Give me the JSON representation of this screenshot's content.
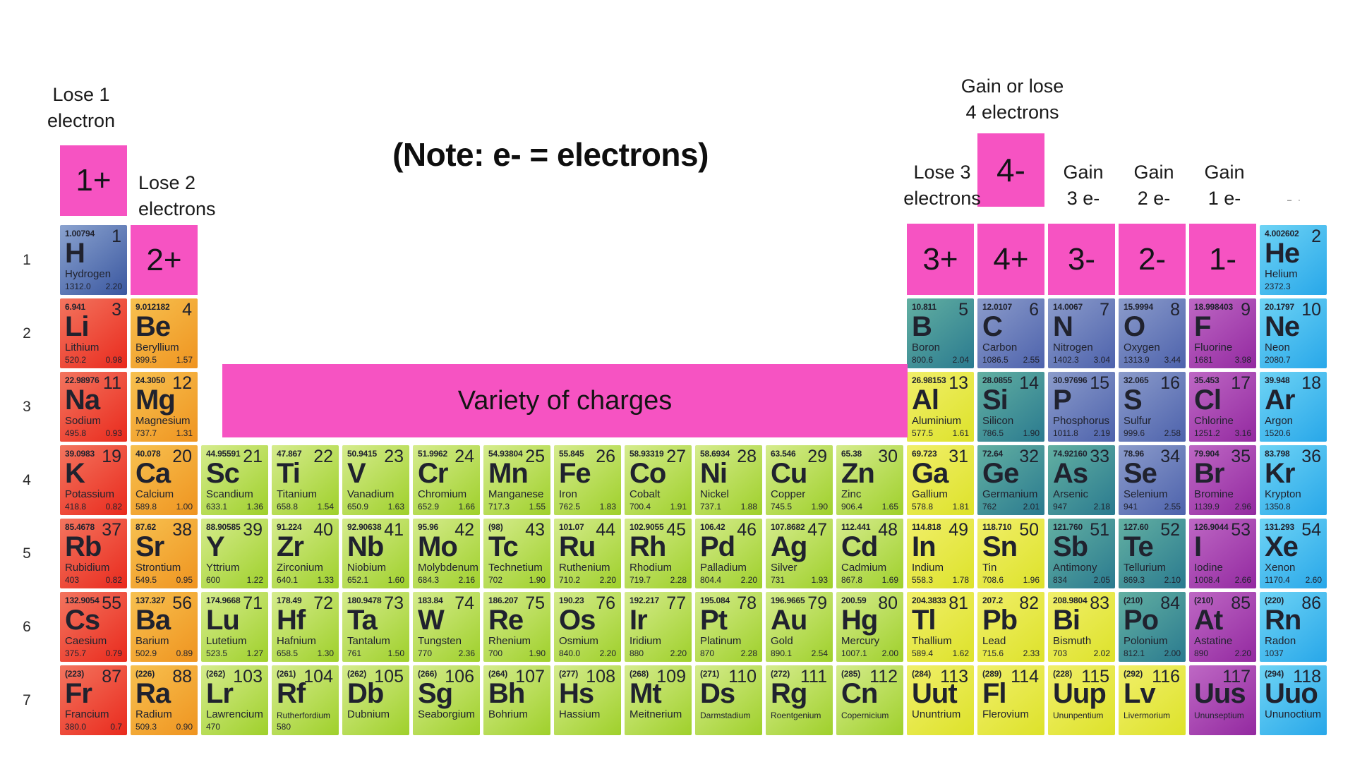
{
  "title_note": "(Note: e- = electrons)",
  "variety_label": "Variety of charges",
  "labels": {
    "lose1": [
      "Lose 1",
      "electron"
    ],
    "lose2": [
      "Lose 2",
      "electrons"
    ],
    "gain_or_lose4": [
      "Gain or lose",
      "4 electrons"
    ],
    "lose3": [
      "Lose 3",
      "electrons"
    ],
    "gain3": [
      "Gain",
      "3 e-"
    ],
    "gain2": [
      "Gain",
      "2 e-"
    ],
    "gain1": [
      "Gain",
      "1 e-"
    ]
  },
  "charge_boxes": {
    "plus1": "1+",
    "plus2": "2+",
    "plus3": "3+",
    "plus4": "4+",
    "minus4": "4-",
    "minus3": "3-",
    "minus2": "2-",
    "minus1": "1-"
  },
  "misc": {
    "fragment": "– ·"
  },
  "row_numbers": [
    "1",
    "2",
    "3",
    "4",
    "5",
    "6",
    "7"
  ],
  "colors": {
    "pink": "#F653C2",
    "categories": {
      "hydrogen": [
        "#8BA3CF",
        "#3A57A0"
      ],
      "alkali": [
        "#F3755F",
        "#E92A1D"
      ],
      "alkaline": [
        "#F7C150",
        "#EF9420"
      ],
      "transition": [
        "#D6EC8E",
        "#9FD02B"
      ],
      "post": [
        "#F1EF6B",
        "#DDE22A"
      ],
      "metalloid": [
        "#63B0A2",
        "#2A7A8F"
      ],
      "nonmetal": [
        "#8C9CCB",
        "#4D62AC"
      ],
      "halogen": [
        "#BE68C4",
        "#9329A0"
      ],
      "noble": [
        "#6FD4F5",
        "#28A7E9"
      ]
    }
  },
  "elements": [
    {
      "n": 1,
      "s": "H",
      "name": "Hydrogen",
      "m": "1.00794",
      "ie": "1312.0",
      "en": "2.20",
      "row": 1,
      "col": 1,
      "cat": "hydrogen"
    },
    {
      "n": 2,
      "s": "He",
      "name": "Helium",
      "m": "4.002602",
      "ie": "2372.3",
      "en": "",
      "row": 1,
      "col": 18,
      "cat": "noble"
    },
    {
      "n": 3,
      "s": "Li",
      "name": "Lithium",
      "m": "6.941",
      "ie": "520.2",
      "en": "0.98",
      "row": 2,
      "col": 1,
      "cat": "alkali"
    },
    {
      "n": 4,
      "s": "Be",
      "name": "Beryllium",
      "m": "9.012182",
      "ie": "899.5",
      "en": "1.57",
      "row": 2,
      "col": 2,
      "cat": "alkaline"
    },
    {
      "n": 5,
      "s": "B",
      "name": "Boron",
      "m": "10.811",
      "ie": "800.6",
      "en": "2.04",
      "row": 2,
      "col": 13,
      "cat": "metalloid"
    },
    {
      "n": 6,
      "s": "C",
      "name": "Carbon",
      "m": "12.0107",
      "ie": "1086.5",
      "en": "2.55",
      "row": 2,
      "col": 14,
      "cat": "nonmetal"
    },
    {
      "n": 7,
      "s": "N",
      "name": "Nitrogen",
      "m": "14.0067",
      "ie": "1402.3",
      "en": "3.04",
      "row": 2,
      "col": 15,
      "cat": "nonmetal"
    },
    {
      "n": 8,
      "s": "O",
      "name": "Oxygen",
      "m": "15.9994",
      "ie": "1313.9",
      "en": "3.44",
      "row": 2,
      "col": 16,
      "cat": "nonmetal"
    },
    {
      "n": 9,
      "s": "F",
      "name": "Fluorine",
      "m": "18.998403",
      "ie": "1681",
      "en": "3.98",
      "row": 2,
      "col": 17,
      "cat": "halogen"
    },
    {
      "n": 10,
      "s": "Ne",
      "name": "Neon",
      "m": "20.1797",
      "ie": "2080.7",
      "en": "",
      "row": 2,
      "col": 18,
      "cat": "noble"
    },
    {
      "n": 11,
      "s": "Na",
      "name": "Sodium",
      "m": "22.98976",
      "ie": "495.8",
      "en": "0.93",
      "row": 3,
      "col": 1,
      "cat": "alkali"
    },
    {
      "n": 12,
      "s": "Mg",
      "name": "Magnesium",
      "m": "24.3050",
      "ie": "737.7",
      "en": "1.31",
      "row": 3,
      "col": 2,
      "cat": "alkaline"
    },
    {
      "n": 13,
      "s": "Al",
      "name": "Aluminium",
      "m": "26.98153",
      "ie": "577.5",
      "en": "1.61",
      "row": 3,
      "col": 13,
      "cat": "post"
    },
    {
      "n": 14,
      "s": "Si",
      "name": "Silicon",
      "m": "28.0855",
      "ie": "786.5",
      "en": "1.90",
      "row": 3,
      "col": 14,
      "cat": "metalloid"
    },
    {
      "n": 15,
      "s": "P",
      "name": "Phosphorus",
      "m": "30.97696",
      "ie": "1011.8",
      "en": "2.19",
      "row": 3,
      "col": 15,
      "cat": "nonmetal"
    },
    {
      "n": 16,
      "s": "S",
      "name": "Sulfur",
      "m": "32.065",
      "ie": "999.6",
      "en": "2.58",
      "row": 3,
      "col": 16,
      "cat": "nonmetal"
    },
    {
      "n": 17,
      "s": "Cl",
      "name": "Chlorine",
      "m": "35.453",
      "ie": "1251.2",
      "en": "3.16",
      "row": 3,
      "col": 17,
      "cat": "halogen"
    },
    {
      "n": 18,
      "s": "Ar",
      "name": "Argon",
      "m": "39.948",
      "ie": "1520.6",
      "en": "",
      "row": 3,
      "col": 18,
      "cat": "noble"
    },
    {
      "n": 19,
      "s": "K",
      "name": "Potassium",
      "m": "39.0983",
      "ie": "418.8",
      "en": "0.82",
      "row": 4,
      "col": 1,
      "cat": "alkali"
    },
    {
      "n": 20,
      "s": "Ca",
      "name": "Calcium",
      "m": "40.078",
      "ie": "589.8",
      "en": "1.00",
      "row": 4,
      "col": 2,
      "cat": "alkaline"
    },
    {
      "n": 21,
      "s": "Sc",
      "name": "Scandium",
      "m": "44.95591",
      "ie": "633.1",
      "en": "1.36",
      "row": 4,
      "col": 3,
      "cat": "transition"
    },
    {
      "n": 22,
      "s": "Ti",
      "name": "Titanium",
      "m": "47.867",
      "ie": "658.8",
      "en": "1.54",
      "row": 4,
      "col": 4,
      "cat": "transition"
    },
    {
      "n": 23,
      "s": "V",
      "name": "Vanadium",
      "m": "50.9415",
      "ie": "650.9",
      "en": "1.63",
      "row": 4,
      "col": 5,
      "cat": "transition"
    },
    {
      "n": 24,
      "s": "Cr",
      "name": "Chromium",
      "m": "51.9962",
      "ie": "652.9",
      "en": "1.66",
      "row": 4,
      "col": 6,
      "cat": "transition"
    },
    {
      "n": 25,
      "s": "Mn",
      "name": "Manganese",
      "m": "54.93804",
      "ie": "717.3",
      "en": "1.55",
      "row": 4,
      "col": 7,
      "cat": "transition"
    },
    {
      "n": 26,
      "s": "Fe",
      "name": "Iron",
      "m": "55.845",
      "ie": "762.5",
      "en": "1.83",
      "row": 4,
      "col": 8,
      "cat": "transition"
    },
    {
      "n": 27,
      "s": "Co",
      "name": "Cobalt",
      "m": "58.93319",
      "ie": "700.4",
      "en": "1.91",
      "row": 4,
      "col": 9,
      "cat": "transition"
    },
    {
      "n": 28,
      "s": "Ni",
      "name": "Nickel",
      "m": "58.6934",
      "ie": "737.1",
      "en": "1.88",
      "row": 4,
      "col": 10,
      "cat": "transition"
    },
    {
      "n": 29,
      "s": "Cu",
      "name": "Copper",
      "m": "63.546",
      "ie": "745.5",
      "en": "1.90",
      "row": 4,
      "col": 11,
      "cat": "transition"
    },
    {
      "n": 30,
      "s": "Zn",
      "name": "Zinc",
      "m": "65.38",
      "ie": "906.4",
      "en": "1.65",
      "row": 4,
      "col": 12,
      "cat": "transition"
    },
    {
      "n": 31,
      "s": "Ga",
      "name": "Gallium",
      "m": "69.723",
      "ie": "578.8",
      "en": "1.81",
      "row": 4,
      "col": 13,
      "cat": "post"
    },
    {
      "n": 32,
      "s": "Ge",
      "name": "Germanium",
      "m": "72.64",
      "ie": "762",
      "en": "2.01",
      "row": 4,
      "col": 14,
      "cat": "metalloid"
    },
    {
      "n": 33,
      "s": "As",
      "name": "Arsenic",
      "m": "74.92160",
      "ie": "947",
      "en": "2.18",
      "row": 4,
      "col": 15,
      "cat": "metalloid"
    },
    {
      "n": 34,
      "s": "Se",
      "name": "Selenium",
      "m": "78.96",
      "ie": "941",
      "en": "2.55",
      "row": 4,
      "col": 16,
      "cat": "nonmetal"
    },
    {
      "n": 35,
      "s": "Br",
      "name": "Bromine",
      "m": "79.904",
      "ie": "1139.9",
      "en": "2.96",
      "row": 4,
      "col": 17,
      "cat": "halogen"
    },
    {
      "n": 36,
      "s": "Kr",
      "name": "Krypton",
      "m": "83.798",
      "ie": "1350.8",
      "en": "",
      "row": 4,
      "col": 18,
      "cat": "noble"
    },
    {
      "n": 37,
      "s": "Rb",
      "name": "Rubidium",
      "m": "85.4678",
      "ie": "403",
      "en": "0.82",
      "row": 5,
      "col": 1,
      "cat": "alkali"
    },
    {
      "n": 38,
      "s": "Sr",
      "name": "Strontium",
      "m": "87.62",
      "ie": "549.5",
      "en": "0.95",
      "row": 5,
      "col": 2,
      "cat": "alkaline"
    },
    {
      "n": 39,
      "s": "Y",
      "name": "Yttrium",
      "m": "88.90585",
      "ie": "600",
      "en": "1.22",
      "row": 5,
      "col": 3,
      "cat": "transition"
    },
    {
      "n": 40,
      "s": "Zr",
      "name": "Zirconium",
      "m": "91.224",
      "ie": "640.1",
      "en": "1.33",
      "row": 5,
      "col": 4,
      "cat": "transition"
    },
    {
      "n": 41,
      "s": "Nb",
      "name": "Niobium",
      "m": "92.90638",
      "ie": "652.1",
      "en": "1.60",
      "row": 5,
      "col": 5,
      "cat": "transition"
    },
    {
      "n": 42,
      "s": "Mo",
      "name": "Molybdenum",
      "m": "95.96",
      "ie": "684.3",
      "en": "2.16",
      "row": 5,
      "col": 6,
      "cat": "transition"
    },
    {
      "n": 43,
      "s": "Tc",
      "name": "Technetium",
      "m": "(98)",
      "ie": "702",
      "en": "1.90",
      "row": 5,
      "col": 7,
      "cat": "transition"
    },
    {
      "n": 44,
      "s": "Ru",
      "name": "Ruthenium",
      "m": "101.07",
      "ie": "710.2",
      "en": "2.20",
      "row": 5,
      "col": 8,
      "cat": "transition"
    },
    {
      "n": 45,
      "s": "Rh",
      "name": "Rhodium",
      "m": "102.9055",
      "ie": "719.7",
      "en": "2.28",
      "row": 5,
      "col": 9,
      "cat": "transition"
    },
    {
      "n": 46,
      "s": "Pd",
      "name": "Palladium",
      "m": "106.42",
      "ie": "804.4",
      "en": "2.20",
      "row": 5,
      "col": 10,
      "cat": "transition"
    },
    {
      "n": 47,
      "s": "Ag",
      "name": "Silver",
      "m": "107.8682",
      "ie": "731",
      "en": "1.93",
      "row": 5,
      "col": 11,
      "cat": "transition"
    },
    {
      "n": 48,
      "s": "Cd",
      "name": "Cadmium",
      "m": "112.441",
      "ie": "867.8",
      "en": "1.69",
      "row": 5,
      "col": 12,
      "cat": "transition"
    },
    {
      "n": 49,
      "s": "In",
      "name": "Indium",
      "m": "114.818",
      "ie": "558.3",
      "en": "1.78",
      "row": 5,
      "col": 13,
      "cat": "post"
    },
    {
      "n": 50,
      "s": "Sn",
      "name": "Tin",
      "m": "118.710",
      "ie": "708.6",
      "en": "1.96",
      "row": 5,
      "col": 14,
      "cat": "post"
    },
    {
      "n": 51,
      "s": "Sb",
      "name": "Antimony",
      "m": "121.760",
      "ie": "834",
      "en": "2.05",
      "row": 5,
      "col": 15,
      "cat": "metalloid"
    },
    {
      "n": 52,
      "s": "Te",
      "name": "Tellurium",
      "m": "127.60",
      "ie": "869.3",
      "en": "2.10",
      "row": 5,
      "col": 16,
      "cat": "metalloid"
    },
    {
      "n": 53,
      "s": "I",
      "name": "Iodine",
      "m": "126.9044",
      "ie": "1008.4",
      "en": "2.66",
      "row": 5,
      "col": 17,
      "cat": "halogen"
    },
    {
      "n": 54,
      "s": "Xe",
      "name": "Xenon",
      "m": "131.293",
      "ie": "1170.4",
      "en": "2.60",
      "row": 5,
      "col": 18,
      "cat": "noble"
    },
    {
      "n": 55,
      "s": "Cs",
      "name": "Caesium",
      "m": "132.9054",
      "ie": "375.7",
      "en": "0.79",
      "row": 6,
      "col": 1,
      "cat": "alkali"
    },
    {
      "n": 56,
      "s": "Ba",
      "name": "Barium",
      "m": "137.327",
      "ie": "502.9",
      "en": "0.89",
      "row": 6,
      "col": 2,
      "cat": "alkaline"
    },
    {
      "n": 71,
      "s": "Lu",
      "name": "Lutetium",
      "m": "174.9668",
      "ie": "523.5",
      "en": "1.27",
      "row": 6,
      "col": 3,
      "cat": "transition"
    },
    {
      "n": 72,
      "s": "Hf",
      "name": "Hafnium",
      "m": "178.49",
      "ie": "658.5",
      "en": "1.30",
      "row": 6,
      "col": 4,
      "cat": "transition"
    },
    {
      "n": 73,
      "s": "Ta",
      "name": "Tantalum",
      "m": "180.9478",
      "ie": "761",
      "en": "1.50",
      "row": 6,
      "col": 5,
      "cat": "transition"
    },
    {
      "n": 74,
      "s": "W",
      "name": "Tungsten",
      "m": "183.84",
      "ie": "770",
      "en": "2.36",
      "row": 6,
      "col": 6,
      "cat": "transition"
    },
    {
      "n": 75,
      "s": "Re",
      "name": "Rhenium",
      "m": "186.207",
      "ie": "700",
      "en": "1.90",
      "row": 6,
      "col": 7,
      "cat": "transition"
    },
    {
      "n": 76,
      "s": "Os",
      "name": "Osmium",
      "m": "190.23",
      "ie": "840.0",
      "en": "2.20",
      "row": 6,
      "col": 8,
      "cat": "transition"
    },
    {
      "n": 77,
      "s": "Ir",
      "name": "Iridium",
      "m": "192.217",
      "ie": "880",
      "en": "2.20",
      "row": 6,
      "col": 9,
      "cat": "transition"
    },
    {
      "n": 78,
      "s": "Pt",
      "name": "Platinum",
      "m": "195.084",
      "ie": "870",
      "en": "2.28",
      "row": 6,
      "col": 10,
      "cat": "transition"
    },
    {
      "n": 79,
      "s": "Au",
      "name": "Gold",
      "m": "196.9665",
      "ie": "890.1",
      "en": "2.54",
      "row": 6,
      "col": 11,
      "cat": "transition"
    },
    {
      "n": 80,
      "s": "Hg",
      "name": "Mercury",
      "m": "200.59",
      "ie": "1007.1",
      "en": "2.00",
      "row": 6,
      "col": 12,
      "cat": "transition"
    },
    {
      "n": 81,
      "s": "Tl",
      "name": "Thallium",
      "m": "204.3833",
      "ie": "589.4",
      "en": "1.62",
      "row": 6,
      "col": 13,
      "cat": "post"
    },
    {
      "n": 82,
      "s": "Pb",
      "name": "Lead",
      "m": "207.2",
      "ie": "715.6",
      "en": "2.33",
      "row": 6,
      "col": 14,
      "cat": "post"
    },
    {
      "n": 83,
      "s": "Bi",
      "name": "Bismuth",
      "m": "208.9804",
      "ie": "703",
      "en": "2.02",
      "row": 6,
      "col": 15,
      "cat": "post"
    },
    {
      "n": 84,
      "s": "Po",
      "name": "Polonium",
      "m": "(210)",
      "ie": "812.1",
      "en": "2.00",
      "row": 6,
      "col": 16,
      "cat": "metalloid"
    },
    {
      "n": 85,
      "s": "At",
      "name": "Astatine",
      "m": "(210)",
      "ie": "890",
      "en": "2.20",
      "row": 6,
      "col": 17,
      "cat": "halogen"
    },
    {
      "n": 86,
      "s": "Rn",
      "name": "Radon",
      "m": "(220)",
      "ie": "1037",
      "en": "",
      "row": 6,
      "col": 18,
      "cat": "noble"
    },
    {
      "n": 87,
      "s": "Fr",
      "name": "Francium",
      "m": "(223)",
      "ie": "380.0",
      "en": "0.7",
      "row": 7,
      "col": 1,
      "cat": "alkali"
    },
    {
      "n": 88,
      "s": "Ra",
      "name": "Radium",
      "m": "(226)",
      "ie": "509.3",
      "en": "0.90",
      "row": 7,
      "col": 2,
      "cat": "alkaline"
    },
    {
      "n": 103,
      "s": "Lr",
      "name": "Lawrencium",
      "m": "(262)",
      "ie": "470",
      "en": "",
      "row": 7,
      "col": 3,
      "cat": "transition"
    },
    {
      "n": 104,
      "s": "Rf",
      "name": "Rutherfordium",
      "m": "(261)",
      "ie": "580",
      "en": "",
      "row": 7,
      "col": 4,
      "cat": "transition"
    },
    {
      "n": 105,
      "s": "Db",
      "name": "Dubnium",
      "m": "(262)",
      "ie": "",
      "en": "",
      "row": 7,
      "col": 5,
      "cat": "transition"
    },
    {
      "n": 106,
      "s": "Sg",
      "name": "Seaborgium",
      "m": "(266)",
      "ie": "",
      "en": "",
      "row": 7,
      "col": 6,
      "cat": "transition"
    },
    {
      "n": 107,
      "s": "Bh",
      "name": "Bohrium",
      "m": "(264)",
      "ie": "",
      "en": "",
      "row": 7,
      "col": 7,
      "cat": "transition"
    },
    {
      "n": 108,
      "s": "Hs",
      "name": "Hassium",
      "m": "(277)",
      "ie": "",
      "en": "",
      "row": 7,
      "col": 8,
      "cat": "transition"
    },
    {
      "n": 109,
      "s": "Mt",
      "name": "Meitnerium",
      "m": "(268)",
      "ie": "",
      "en": "",
      "row": 7,
      "col": 9,
      "cat": "transition"
    },
    {
      "n": 110,
      "s": "Ds",
      "name": "Darmstadium",
      "m": "(271)",
      "ie": "",
      "en": "",
      "row": 7,
      "col": 10,
      "cat": "transition"
    },
    {
      "n": 111,
      "s": "Rg",
      "name": "Roentgenium",
      "m": "(272)",
      "ie": "",
      "en": "",
      "row": 7,
      "col": 11,
      "cat": "transition"
    },
    {
      "n": 112,
      "s": "Cn",
      "name": "Copernicium",
      "m": "(285)",
      "ie": "",
      "en": "",
      "row": 7,
      "col": 12,
      "cat": "transition"
    },
    {
      "n": 113,
      "s": "Uut",
      "name": "Ununtrium",
      "m": "(284)",
      "ie": "",
      "en": "",
      "row": 7,
      "col": 13,
      "cat": "post"
    },
    {
      "n": 114,
      "s": "Fl",
      "name": "Flerovium",
      "m": "(289)",
      "ie": "",
      "en": "",
      "row": 7,
      "col": 14,
      "cat": "post"
    },
    {
      "n": 115,
      "s": "Uup",
      "name": "Ununpentium",
      "m": "(228)",
      "ie": "",
      "en": "",
      "row": 7,
      "col": 15,
      "cat": "post"
    },
    {
      "n": 116,
      "s": "Lv",
      "name": "Livermorium",
      "m": "(292)",
      "ie": "",
      "en": "",
      "row": 7,
      "col": 16,
      "cat": "post"
    },
    {
      "n": 117,
      "s": "Uus",
      "name": "Ununseptium",
      "m": "",
      "ie": "",
      "en": "",
      "row": 7,
      "col": 17,
      "cat": "halogen"
    },
    {
      "n": 118,
      "s": "Uuo",
      "name": "Ununoctium",
      "m": "(294)",
      "ie": "",
      "en": "",
      "row": 7,
      "col": 18,
      "cat": "noble"
    }
  ]
}
